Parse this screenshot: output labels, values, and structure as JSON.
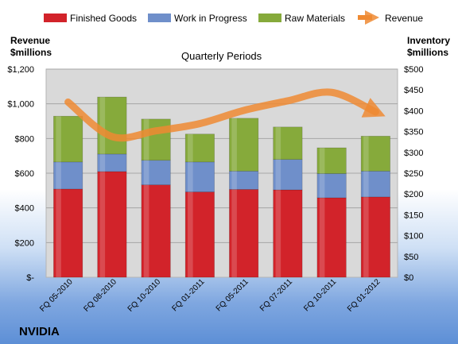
{
  "chart_data": {
    "type": "bar",
    "stacked": true,
    "title": "Quarterly Periods",
    "brand_label": "NVIDIA",
    "categories": [
      "FQ 05-2010",
      "FQ 08-2010",
      "FQ 10-2010",
      "FQ 01-2011",
      "FQ 05-2011",
      "FQ 07-2011",
      "FQ 10-2011",
      "FQ 01-2012"
    ],
    "left_axis": {
      "title_line1": "Revenue",
      "title_line2": "$millions",
      "ylim": [
        0,
        1200
      ],
      "ticks": [
        0,
        200,
        400,
        600,
        800,
        1000,
        1200
      ],
      "tick_labels": [
        "$-",
        "$200",
        "$400",
        "$600",
        "$800",
        "$1,000",
        "$1,200"
      ]
    },
    "right_axis": {
      "title_line1": "Inventory",
      "title_line2": "$millions",
      "ylim": [
        0,
        500
      ],
      "ticks": [
        0,
        50,
        100,
        150,
        200,
        250,
        300,
        350,
        400,
        450,
        500
      ],
      "tick_labels": [
        "$0",
        "$50",
        "$100",
        "$150",
        "$200",
        "$250",
        "$300",
        "$350",
        "$400",
        "$450",
        "$500"
      ]
    },
    "series": [
      {
        "name": "Finished Goods",
        "axis": "right",
        "color": "#d2232a",
        "values": [
          212,
          254,
          222,
          205,
          211,
          210,
          191,
          193
        ]
      },
      {
        "name": "Work in Progress",
        "axis": "right",
        "color": "#6f8fca",
        "values": [
          65,
          42,
          59,
          72,
          44,
          73,
          58,
          62
        ]
      },
      {
        "name": "Raw Materials",
        "axis": "right",
        "color": "#86aa3b",
        "values": [
          110,
          137,
          99,
          67,
          127,
          78,
          62,
          84
        ]
      }
    ],
    "line_series": {
      "name": "Revenue",
      "axis": "left",
      "color": "#ef8a32",
      "values": [
        1010,
        811,
        844,
        886,
        962,
        1017,
        1066,
        953
      ]
    },
    "grid": "horizontal",
    "legend_position": "top"
  }
}
